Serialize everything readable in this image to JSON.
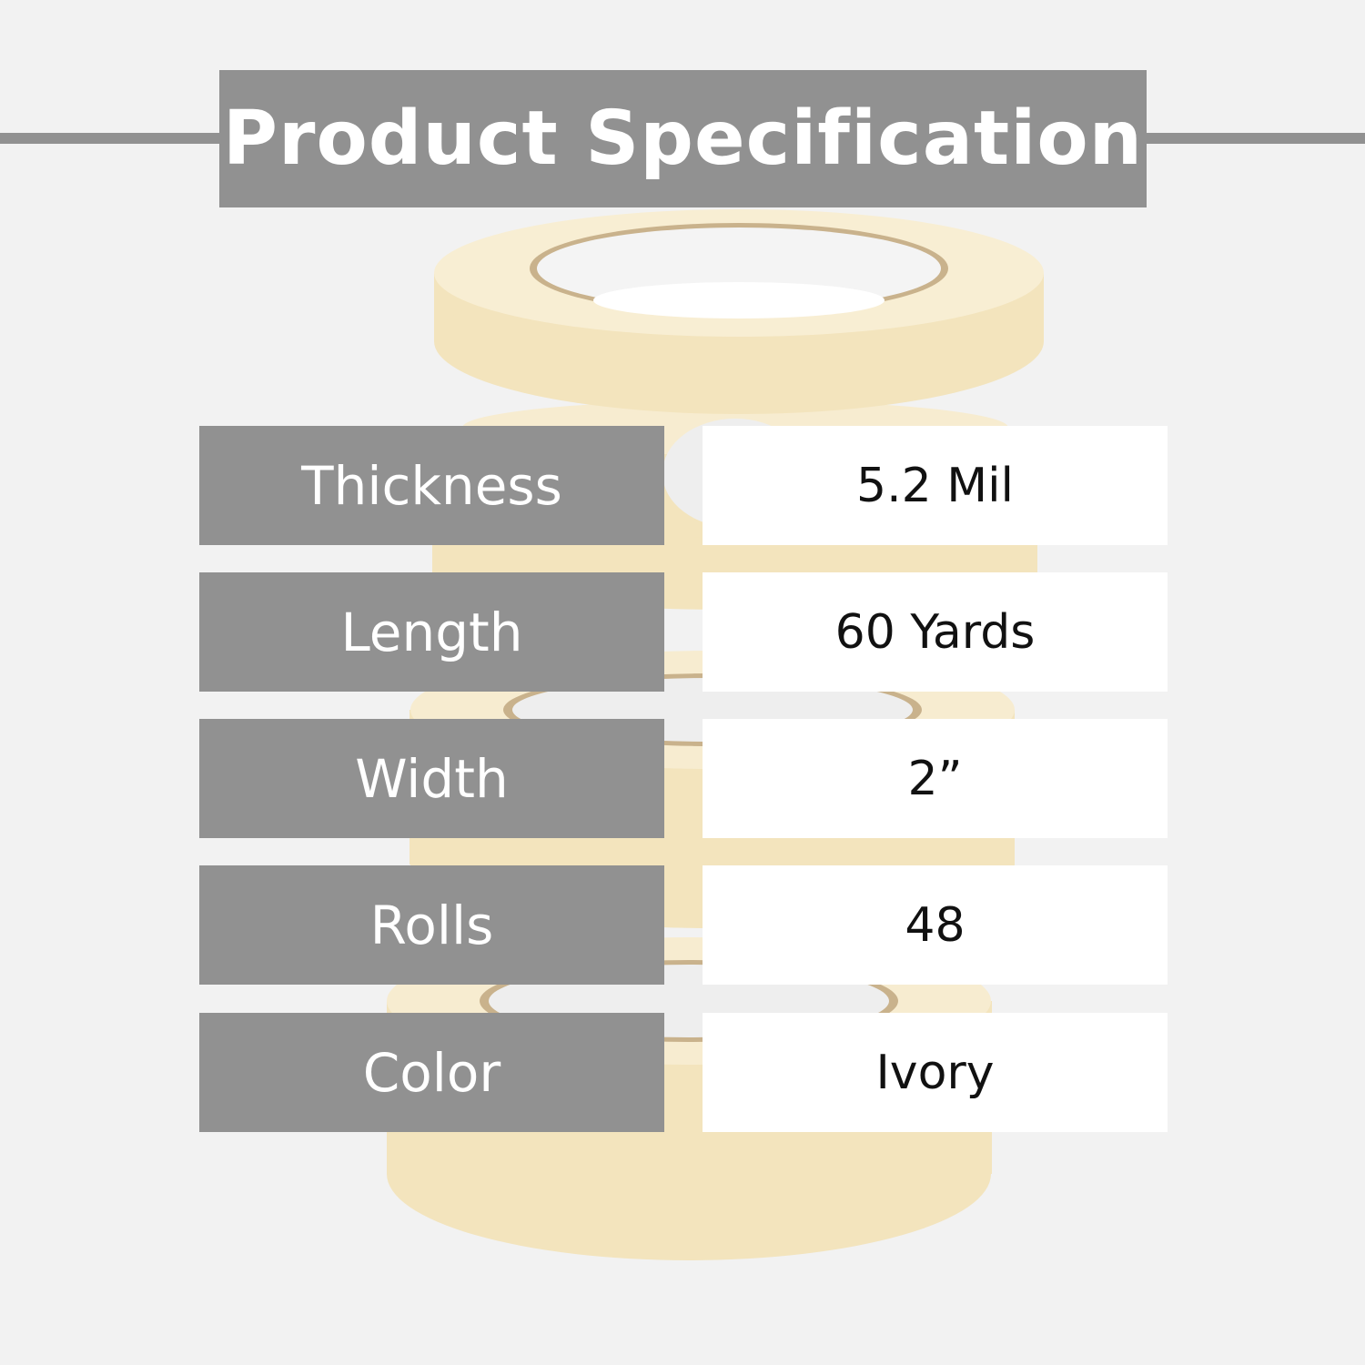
{
  "title": "Product Specification",
  "colors": {
    "background": "#f2f2f2",
    "label_bg": "#919191",
    "value_bg": "#ffffff",
    "tape": "#f5e8c6"
  },
  "specs": [
    {
      "label": "Thickness",
      "value": "5.2 Mil"
    },
    {
      "label": "Length",
      "value": "60 Yards"
    },
    {
      "label": "Width",
      "value": "2”"
    },
    {
      "label": "Rolls",
      "value": "48"
    },
    {
      "label": "Color",
      "value": "Ivory"
    }
  ]
}
